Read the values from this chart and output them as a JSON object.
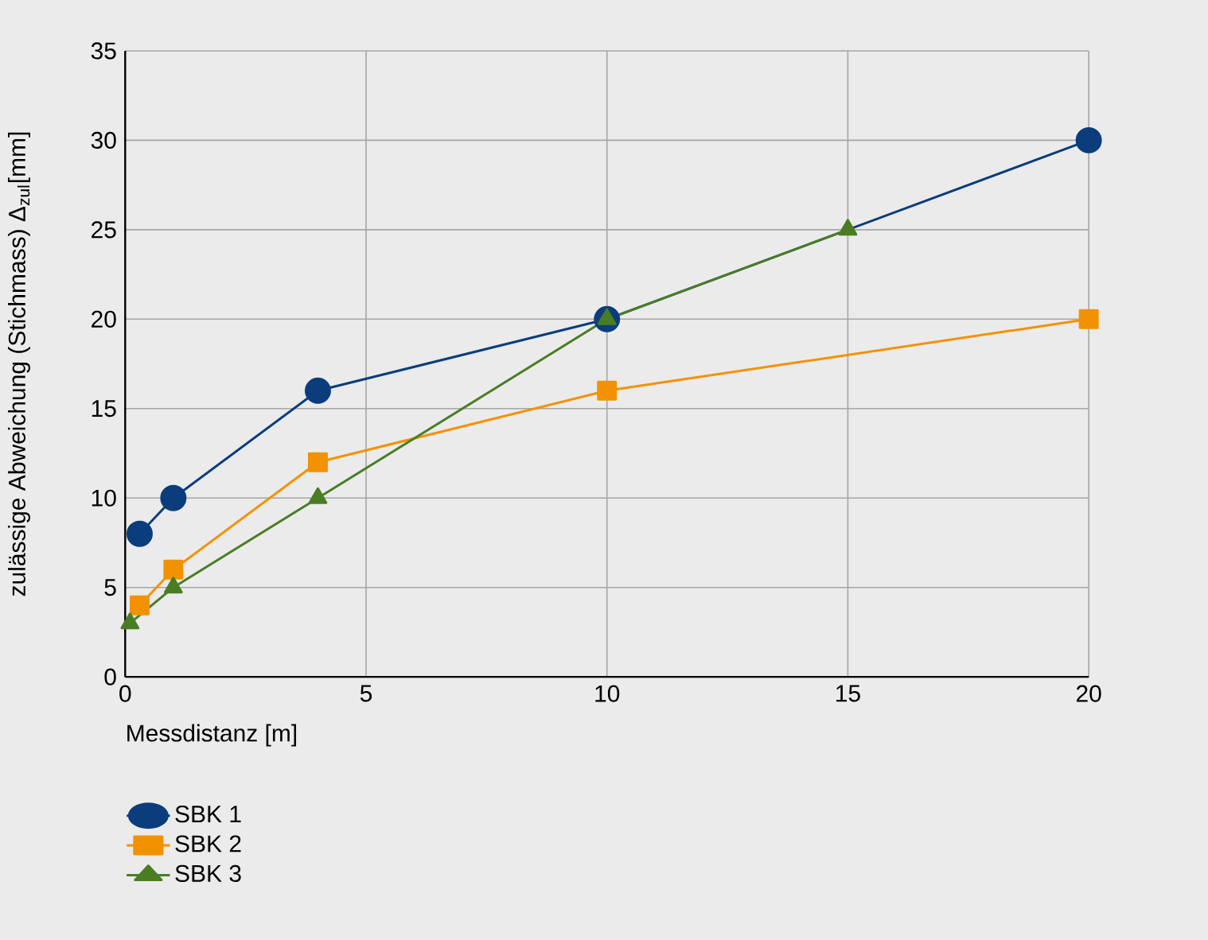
{
  "chart_data": {
    "type": "line",
    "xlabel": "Messdistanz [m]",
    "ylabel": "zulässige Abweichung (Stichmass) Δ$_{zul}$[mm]",
    "xlim": [
      0,
      20
    ],
    "ylim": [
      0,
      35
    ],
    "xticks": [
      0,
      5,
      10,
      15,
      20
    ],
    "yticks": [
      0,
      5,
      10,
      15,
      20,
      25,
      30,
      35
    ],
    "grid": true,
    "legend": "bottom left",
    "line_style": "solid",
    "series": [
      {
        "name": "SBK 1",
        "color": "#0b3d7c",
        "marker": "circle",
        "x": [
          0.3,
          1,
          4,
          10,
          20
        ],
        "values": [
          8,
          10,
          16,
          20,
          30
        ]
      },
      {
        "name": "SBK 2",
        "color": "#f39200",
        "marker": "square",
        "x": [
          0.3,
          1,
          4,
          10,
          20
        ],
        "values": [
          4,
          6,
          12,
          16,
          20
        ]
      },
      {
        "name": "SBK 3",
        "color": "#4a7d23",
        "marker": "triangle",
        "x": [
          0.1,
          1,
          4,
          10,
          15
        ],
        "values": [
          3,
          5,
          10,
          20,
          25
        ]
      }
    ]
  }
}
